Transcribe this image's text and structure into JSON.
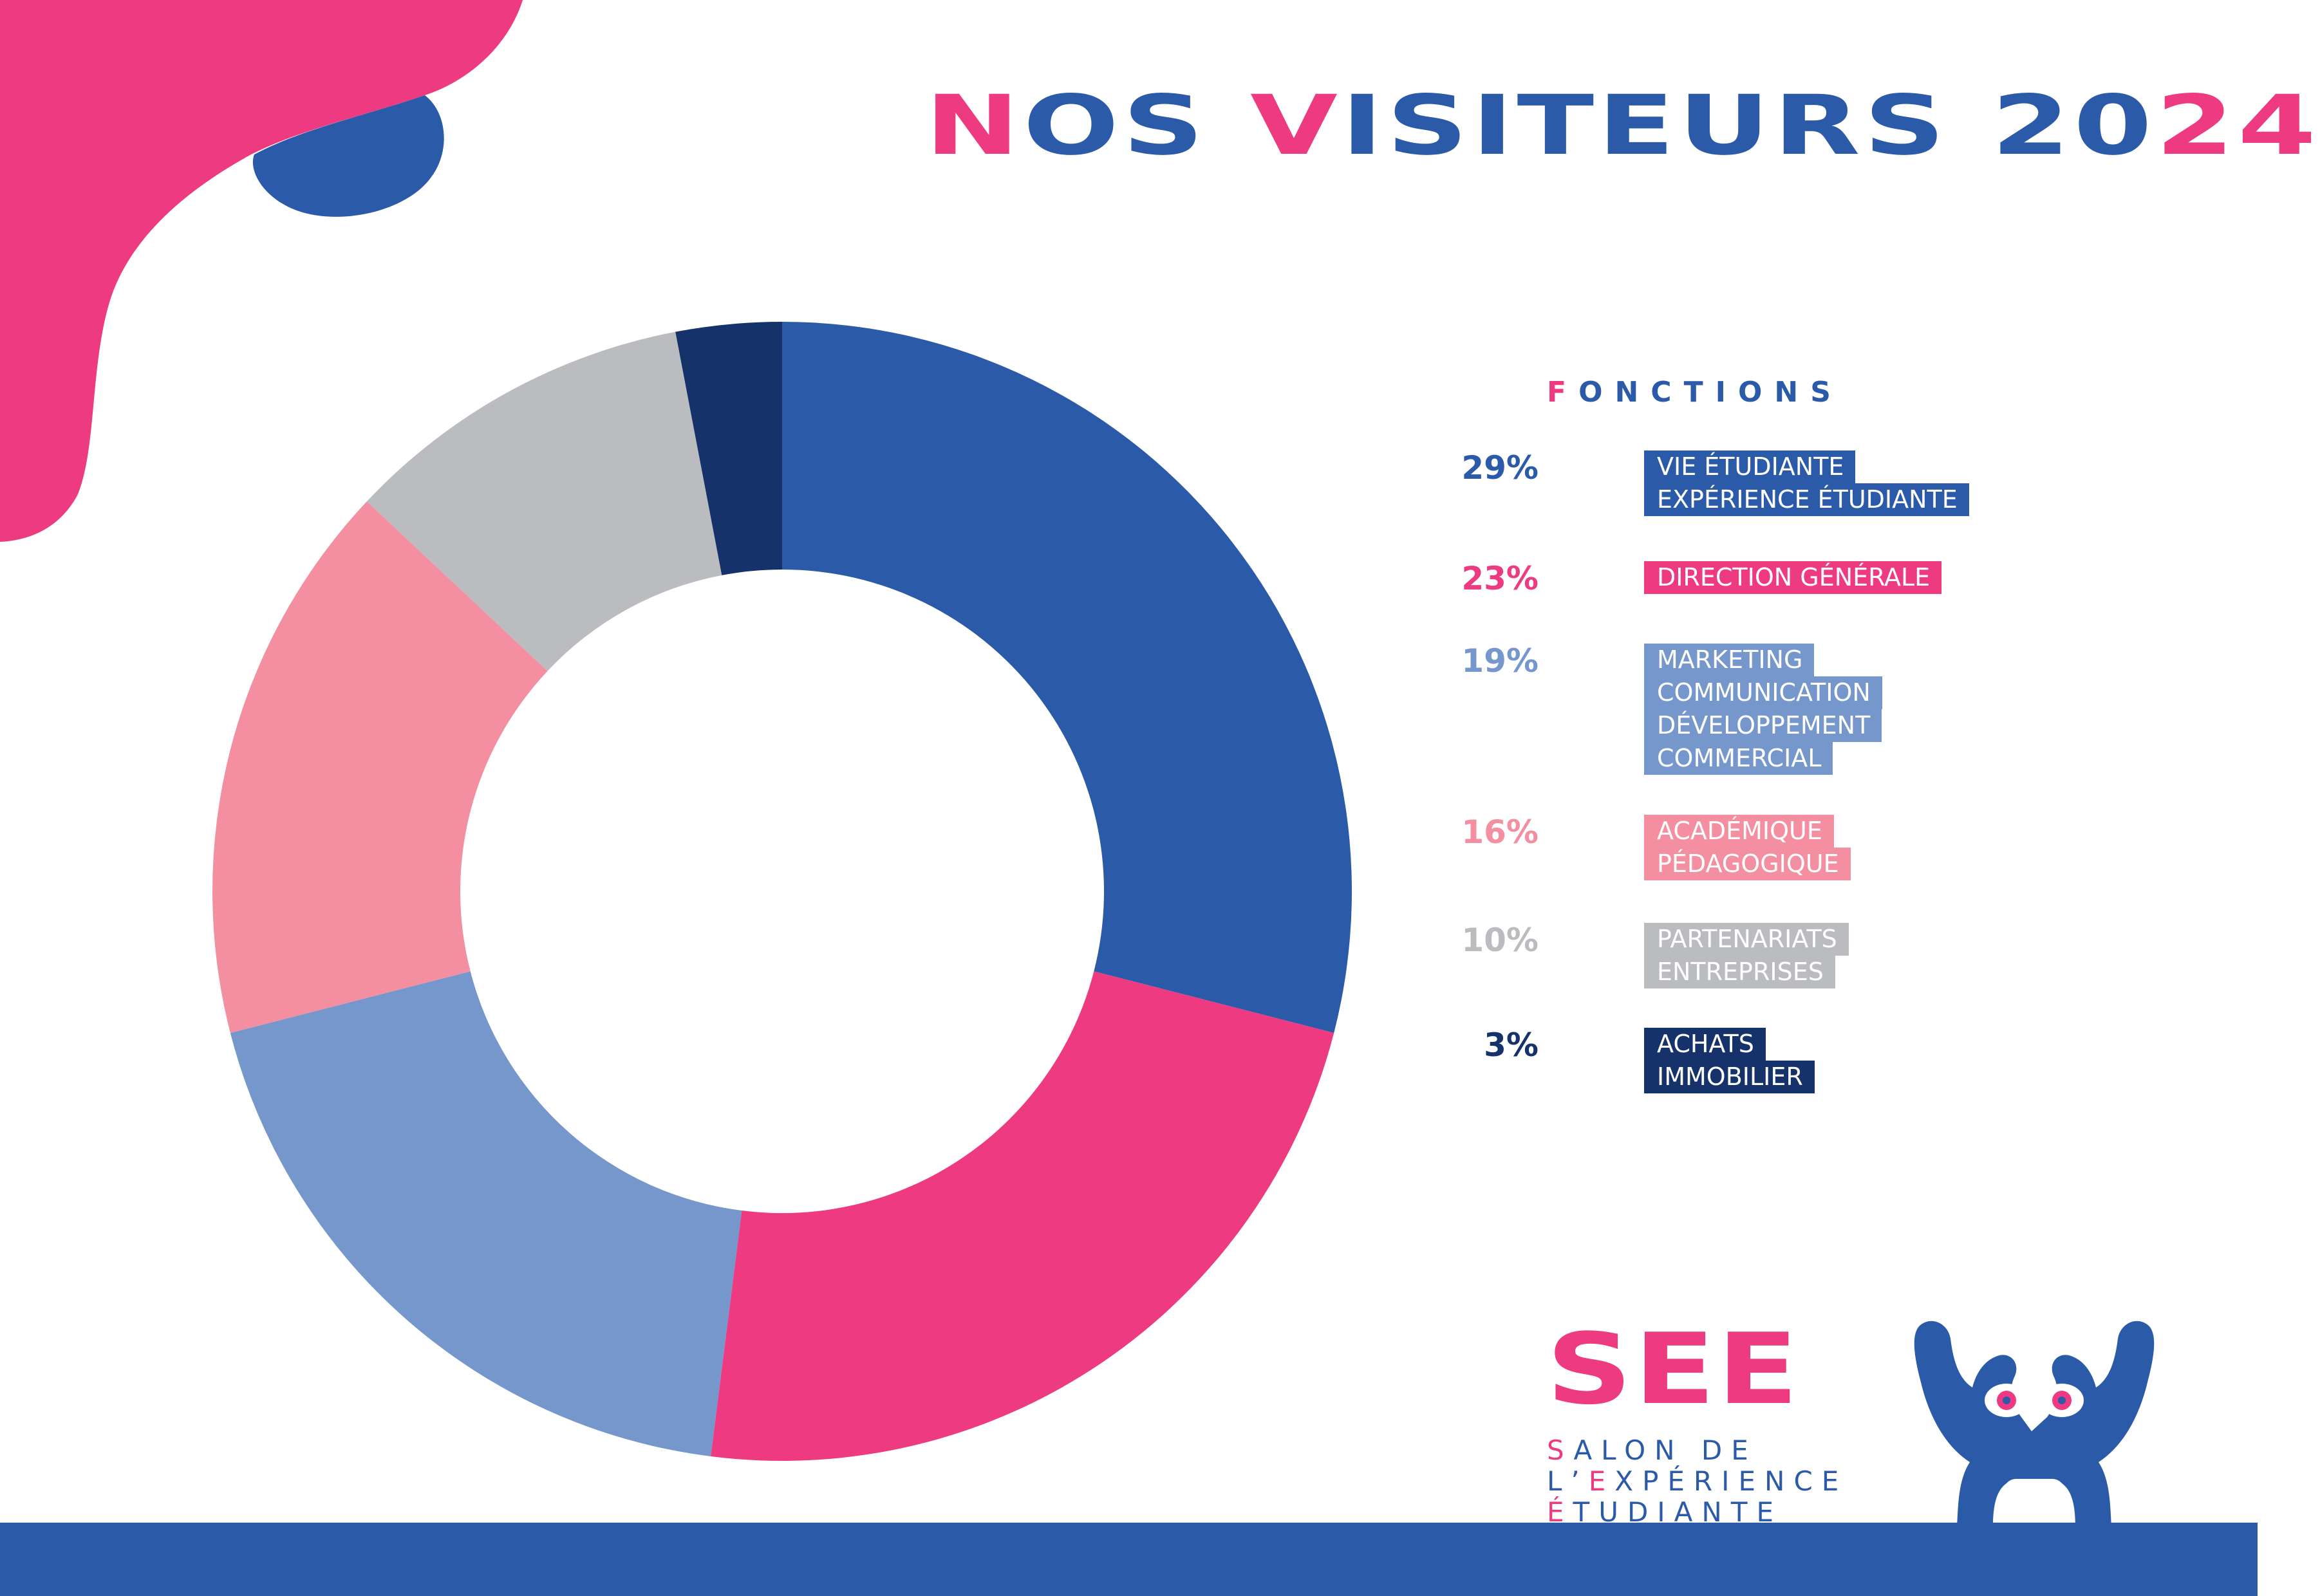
{
  "title": {
    "parts": [
      {
        "text": "N",
        "accent": true
      },
      {
        "text": "OS ",
        "accent": false
      },
      {
        "text": "V",
        "accent": true
      },
      {
        "text": "ISITEURS 20",
        "accent": false
      },
      {
        "text": "24",
        "accent": true
      }
    ]
  },
  "chart_data": {
    "type": "pie",
    "donut": true,
    "title": "NOS VISITEURS 2024",
    "legend_title": "FONCTIONS",
    "legend_position": "right",
    "slices": [
      {
        "value": 29,
        "label_pct": "29%",
        "lines": [
          "VIE ÉTUDIANTE",
          "EXPÉRIENCE ÉTUDIANTE"
        ],
        "color": "#2b5ba8"
      },
      {
        "value": 23,
        "label_pct": "23%",
        "lines": [
          "DIRECTION GÉNÉRALE"
        ],
        "color": "#ee3a81"
      },
      {
        "value": 19,
        "label_pct": "19%",
        "lines": [
          "MARKETING",
          "COMMUNICATION",
          "DÉVELOPPEMENT",
          "COMMERCIAL"
        ],
        "color": "#7597cb"
      },
      {
        "value": 16,
        "label_pct": "16%",
        "lines": [
          "ACADÉMIQUE",
          "PÉDAGOGIQUE"
        ],
        "color": "#f38fa0"
      },
      {
        "value": 10,
        "label_pct": "10%",
        "lines": [
          "PARTENARIATS",
          "ENTREPRISES"
        ],
        "color": "#bbbcc0"
      },
      {
        "value": 3,
        "label_pct": "3%",
        "lines": [
          "ACHATS",
          "IMMOBILIER"
        ],
        "color": "#16326a"
      }
    ]
  },
  "legend": {
    "heading_first": "F",
    "heading_rest": "ONCTIONS"
  },
  "logo": {
    "name": "SEE",
    "tagline": [
      {
        "first": "S",
        "rest": "ALON DE"
      },
      {
        "first": "L’",
        "rest": "EXPÉRIENCE",
        "accent_rest_first": true
      },
      {
        "first": "É",
        "rest": "TUDIANTE"
      }
    ],
    "mascot_icon": "hands-binoculars-mascot-icon"
  },
  "colors": {
    "blue": "#2b5ba8",
    "pink": "#ee3a81",
    "light_blue": "#7597cb",
    "light_pink": "#f38fa0",
    "grey": "#bbbcc0",
    "navy": "#16326a"
  }
}
